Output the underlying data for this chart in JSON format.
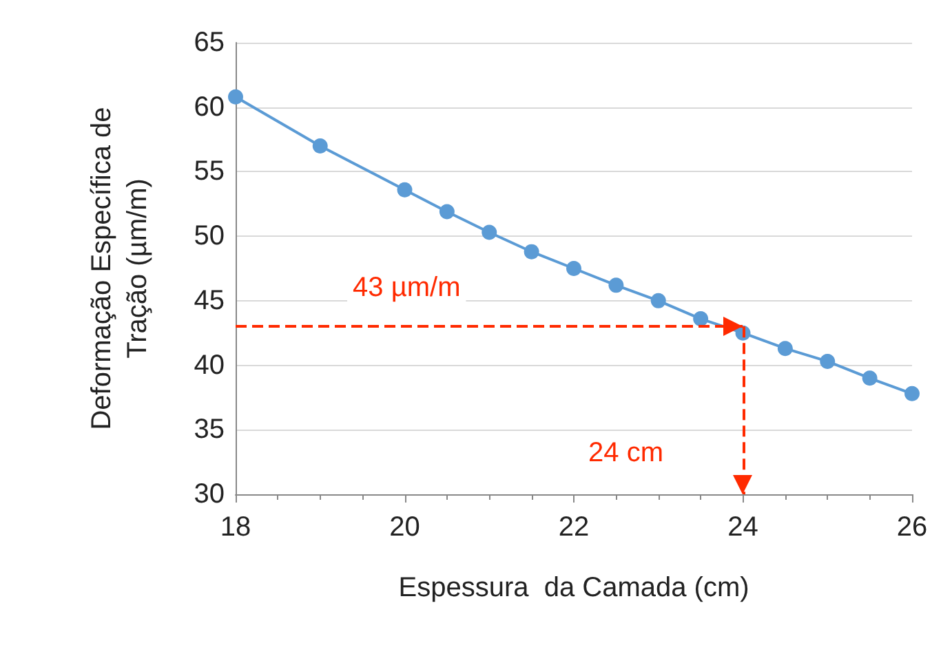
{
  "chart_data": {
    "type": "line",
    "xlabel": "Espessura  da Camada (cm)",
    "ylabel": "Deformação Específica de\nTração (µm/m)",
    "x": [
      18,
      19,
      20,
      20.5,
      21,
      21.5,
      22,
      22.5,
      23,
      23.5,
      24,
      24.5,
      25,
      25.5,
      26
    ],
    "series": [
      {
        "color": "#5b9bd5",
        "values": [
          60.8,
          57.0,
          53.6,
          51.9,
          50.3,
          48.8,
          47.5,
          46.2,
          45.0,
          43.6,
          42.5,
          41.3,
          40.3,
          39.0,
          37.8
        ]
      }
    ],
    "xlim": [
      18,
      26
    ],
    "xticks": [
      18,
      20,
      22,
      24,
      26
    ],
    "ylim": [
      30,
      65
    ],
    "yticks": [
      30,
      35,
      40,
      45,
      50,
      55,
      60,
      65
    ],
    "grid": "y",
    "marker": "circle",
    "line_style": "solid",
    "ref_lines": [
      {
        "axis": "y",
        "value": 43,
        "label": "43 µm/m",
        "color": "#ff2a00",
        "line_style": "dashed"
      },
      {
        "axis": "x",
        "value": 24,
        "label": "24 cm",
        "color": "#ff2a00",
        "line_style": "dashed"
      }
    ]
  }
}
